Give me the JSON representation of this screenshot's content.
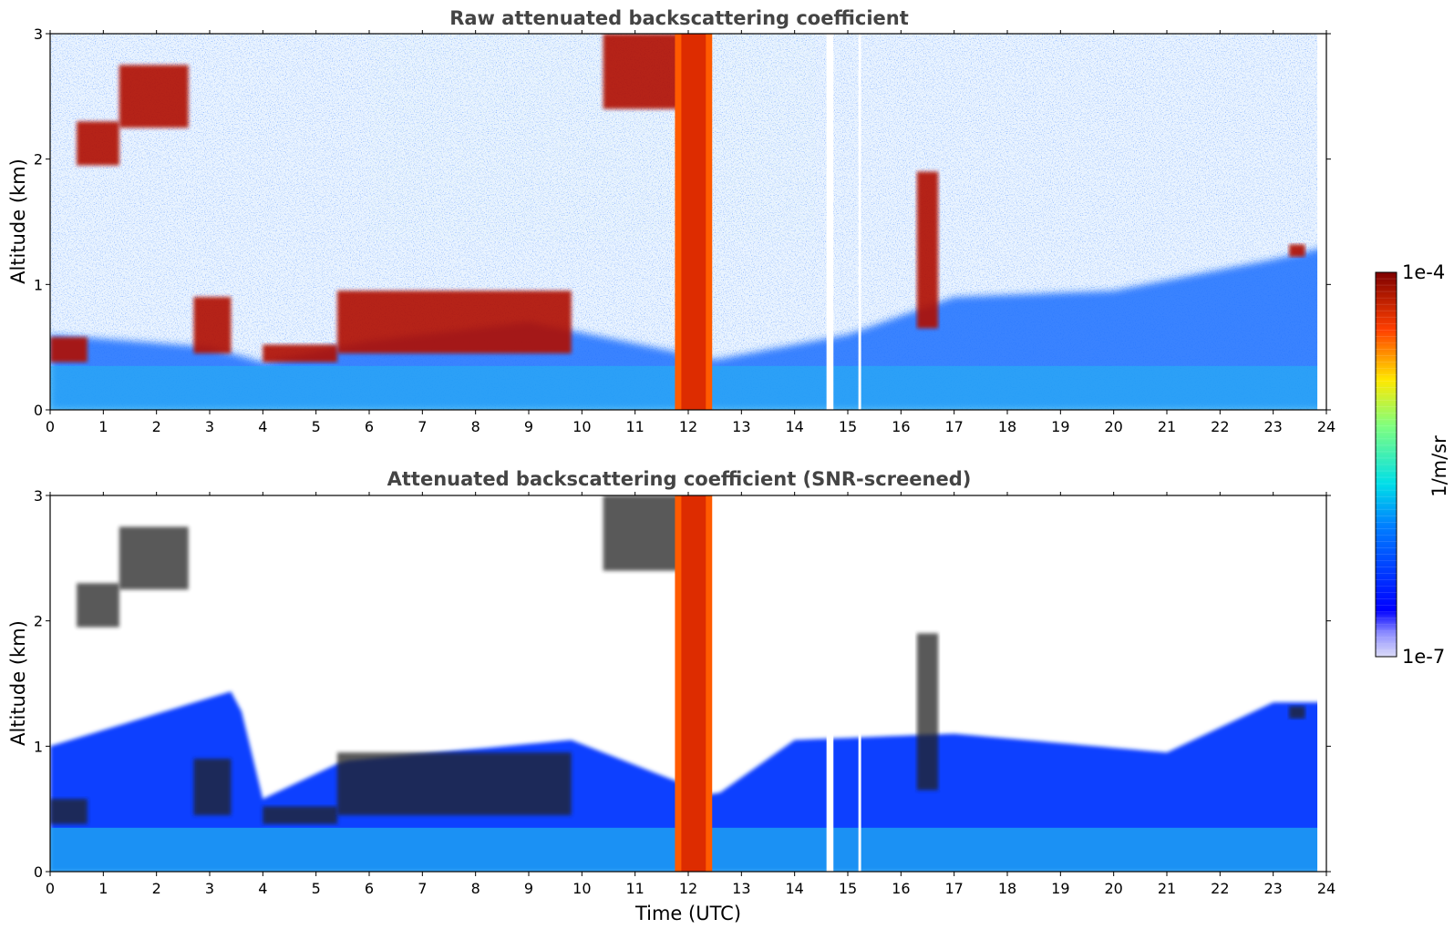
{
  "figure": {
    "colorbar": {
      "max_label": "1e-4",
      "min_label": "1e-7",
      "unit_label": "1/m/sr",
      "colormap": "jet",
      "log_scale": true
    }
  },
  "chart_data": [
    {
      "type": "heatmap",
      "title": "Raw attenuated backscattering coefficient",
      "xlabel": "",
      "ylabel": "Altitude (km)",
      "xlim": [
        0,
        24
      ],
      "ylim": [
        0,
        3
      ],
      "xticks": [
        "0",
        "1",
        "2",
        "3",
        "4",
        "5",
        "6",
        "7",
        "8",
        "9",
        "10",
        "11",
        "12",
        "13",
        "14",
        "15",
        "16",
        "17",
        "18",
        "19",
        "20",
        "21",
        "22",
        "23",
        "24"
      ],
      "yticks": [
        "0",
        "1",
        "2",
        "3"
      ],
      "data_gaps_utc": [
        [
          14.6,
          14.73
        ],
        [
          15.2,
          15.25
        ],
        [
          23.83,
          24.0
        ]
      ],
      "cloud_layers": [
        {
          "start": 0.0,
          "end": 0.7,
          "base_km": 0.38,
          "top_km": 0.58
        },
        {
          "start": 0.5,
          "end": 1.3,
          "base_km": 1.95,
          "top_km": 2.3
        },
        {
          "start": 1.3,
          "end": 2.6,
          "base_km": 2.25,
          "top_km": 2.75
        },
        {
          "start": 2.7,
          "end": 3.4,
          "base_km": 0.45,
          "top_km": 0.9
        },
        {
          "start": 4.0,
          "end": 5.4,
          "base_km": 0.38,
          "top_km": 0.52
        },
        {
          "start": 5.4,
          "end": 9.8,
          "base_km": 0.45,
          "top_km": 0.95
        },
        {
          "start": 10.4,
          "end": 12.2,
          "base_km": 2.4,
          "top_km": 3.0
        },
        {
          "start": 16.3,
          "end": 16.7,
          "base_km": 0.65,
          "top_km": 1.9
        },
        {
          "start": 23.3,
          "end": 23.6,
          "base_km": 1.22,
          "top_km": 1.32
        }
      ],
      "precipitation_columns": [
        {
          "start": 11.75,
          "end": 12.45
        }
      ],
      "boundary_layer_top_km": [
        {
          "t": 0,
          "h": 0.6
        },
        {
          "t": 3,
          "h": 0.5
        },
        {
          "t": 4,
          "h": 0.38
        },
        {
          "t": 6,
          "h": 0.55
        },
        {
          "t": 9,
          "h": 0.7
        },
        {
          "t": 12.5,
          "h": 0.4
        },
        {
          "t": 15,
          "h": 0.6
        },
        {
          "t": 17,
          "h": 0.9
        },
        {
          "t": 20,
          "h": 0.95
        },
        {
          "t": 23,
          "h": 1.2
        },
        {
          "t": 24,
          "h": 1.3
        }
      ]
    },
    {
      "type": "heatmap",
      "title": "Attenuated backscattering coefficient (SNR-screened)",
      "xlabel": "Time (UTC)",
      "ylabel": "Altitude (km)",
      "xlim": [
        0,
        24
      ],
      "ylim": [
        0,
        3
      ],
      "xticks": [
        "0",
        "1",
        "2",
        "3",
        "4",
        "5",
        "6",
        "7",
        "8",
        "9",
        "10",
        "11",
        "12",
        "13",
        "14",
        "15",
        "16",
        "17",
        "18",
        "19",
        "20",
        "21",
        "22",
        "23",
        "24"
      ],
      "yticks": [
        "0",
        "1",
        "2",
        "3"
      ],
      "screened_signal_top_km": [
        {
          "t": 0,
          "h": 1.0
        },
        {
          "t": 3.5,
          "h": 1.45
        },
        {
          "t": 4.0,
          "h": 0.58
        },
        {
          "t": 5.5,
          "h": 0.88
        },
        {
          "t": 9.8,
          "h": 1.05
        },
        {
          "t": 12.5,
          "h": 0.6
        },
        {
          "t": 14.0,
          "h": 1.05
        },
        {
          "t": 17,
          "h": 1.1
        },
        {
          "t": 21,
          "h": 0.95
        },
        {
          "t": 23,
          "h": 1.35
        },
        {
          "t": 24,
          "h": 1.35
        }
      ]
    }
  ]
}
